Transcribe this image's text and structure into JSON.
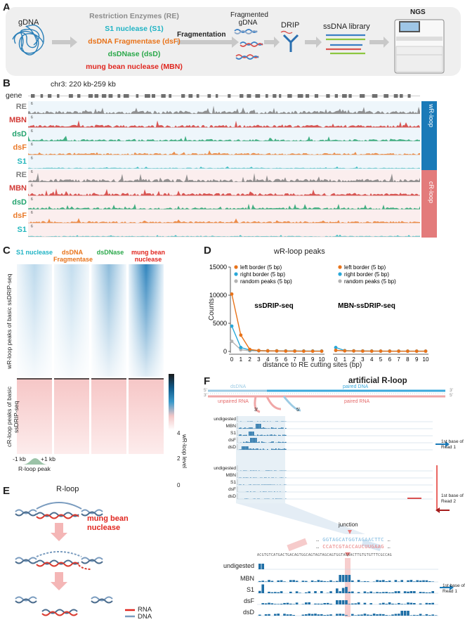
{
  "panels": {
    "A": {
      "letter": "A",
      "gdna": "gDNA",
      "enzymes": [
        {
          "label": "Restriction Enzymes (RE)",
          "color": "#8c8c8c"
        },
        {
          "label": "S1 nuclease (S1)",
          "color": "#1fb3c4"
        },
        {
          "label": "dsDNA Fragmentase (dsF)",
          "color": "#e8731a"
        },
        {
          "label": "dsDNase (dsD)",
          "color": "#2aa84a"
        },
        {
          "label": "mung bean nuclease (MBN)",
          "color": "#e0261f"
        }
      ],
      "fragmentation": "Fragmentation",
      "fragmented_gdna_line1": "Fragmented",
      "fragmented_gdna_line2": "gDNA",
      "drip": "DRIP",
      "ssdna_library": "ssDNA library",
      "ngs": "NGS"
    },
    "B": {
      "letter": "B",
      "region": "chr3: 220 kb-259 kb",
      "gene_label": "gene",
      "tracks_wr": [
        "RE",
        "MBN",
        "dsD",
        "dsF",
        "S1"
      ],
      "tracks_cr": [
        "RE",
        "MBN",
        "dsD",
        "dsF",
        "S1"
      ],
      "scale_label": "6",
      "wr_label": "wR-loop",
      "cr_label": "cR-loop"
    },
    "C": {
      "letter": "C",
      "columns": [
        {
          "line1": "S1 nuclease",
          "line2": "",
          "color": "#1fb3c4"
        },
        {
          "line1": "dsDNA",
          "line2": "Fragmentase",
          "color": "#e8731a"
        },
        {
          "line1": "dsDNase",
          "line2": "",
          "color": "#2aa84a"
        },
        {
          "line1": "mung bean",
          "line2": "nuclease",
          "color": "#e0261f"
        }
      ],
      "ylabel_top": "wR-loop peaks of basic ssDRIP-seq",
      "ylabel_bottom": "cR-loop peaks of basic ssDRIP-seq",
      "x_left": "-1 kb",
      "x_right": "+1 kb",
      "x_center": "R-loop peak",
      "colorbar_label": "wR-loop level",
      "colorbar_ticks": [
        "4",
        "2",
        "0"
      ]
    },
    "D": {
      "letter": "D",
      "title": "wR-loop peaks",
      "ylabel": "Counts",
      "xlabel": "distance to RE cutting sites (bp)",
      "legend": [
        {
          "label": "left border (5 bp)",
          "color": "#e8731a"
        },
        {
          "label": "right border (5 bp)",
          "color": "#29a8d8"
        },
        {
          "label": "random peaks (5 bp)",
          "color": "#b3b3b3"
        }
      ],
      "subplot_labels": [
        "ssDRIP-seq",
        "MBN-ssDRIP-seq"
      ],
      "yticks": [
        "0",
        "5000",
        "10000",
        "15000"
      ]
    },
    "E": {
      "letter": "E",
      "rloop": "R-loop",
      "mbn_line1": "mung bean",
      "mbn_line2": "nuclease",
      "legend_rna": "RNA",
      "legend_dna": "DNA"
    },
    "F": {
      "letter": "F",
      "title": "artificial R-loop",
      "dsdna": "dsDNA",
      "paired_dna": "paired DNA",
      "unpaired_rna": "unpaired RNA",
      "paired_rna": "paired RNA",
      "top_tracks": [
        "undigested",
        "MBN",
        "S1",
        "dsF",
        "dsD"
      ],
      "read1_line1": "1st base of",
      "read1_line2": "Read 1",
      "read2_line1": "1st base of",
      "read2_line2": "Read 2",
      "junction": "junction",
      "seq_top": "GGTAGCATGGTAGAACTTC",
      "seq_bottom": "CCATCGTACCAUCUUGAAG",
      "zoom_sequence": "ACGTGTCATGACTGACAGTGGCAGTAGTAGCAGTGGTAGAACTTGTGTGTTTCGCCAG",
      "zoom_tracks": [
        "undigested",
        "MBN",
        "S1",
        "dsF",
        "dsD"
      ],
      "zoom_read_line1": "1st base of",
      "zoom_read_line2": "Read 1"
    }
  },
  "chart_data": [
    {
      "type": "line",
      "title": "wR-loop peaks",
      "subtitle": "ssDRIP-seq",
      "xlabel": "distance to RE cutting sites (bp)",
      "ylabel": "Counts",
      "x": [
        0,
        1,
        2,
        3,
        4,
        5,
        6,
        7,
        8,
        9,
        10
      ],
      "ylim": [
        0,
        15000
      ],
      "series": [
        {
          "name": "left border (5 bp)",
          "color": "#e8731a",
          "values": [
            10200,
            2900,
            350,
            150,
            100,
            80,
            60,
            50,
            40,
            40,
            40
          ]
        },
        {
          "name": "right border (5 bp)",
          "color": "#29a8d8",
          "values": [
            4500,
            700,
            250,
            150,
            120,
            100,
            90,
            80,
            70,
            70,
            70
          ]
        },
        {
          "name": "random peaks (5 bp)",
          "color": "#b3b3b3",
          "values": [
            1800,
            300,
            100,
            80,
            60,
            50,
            50,
            40,
            40,
            40,
            40
          ]
        }
      ]
    },
    {
      "type": "line",
      "title": "wR-loop peaks",
      "subtitle": "MBN-ssDRIP-seq",
      "xlabel": "distance to RE cutting sites (bp)",
      "ylabel": "Counts",
      "x": [
        0,
        1,
        2,
        3,
        4,
        5,
        6,
        7,
        8,
        9,
        10
      ],
      "ylim": [
        0,
        15000
      ],
      "series": [
        {
          "name": "left border (5 bp)",
          "color": "#e8731a",
          "values": [
            200,
            100,
            80,
            60,
            50,
            50,
            40,
            40,
            40,
            40,
            40
          ]
        },
        {
          "name": "right border (5 bp)",
          "color": "#29a8d8",
          "values": [
            700,
            150,
            100,
            80,
            70,
            60,
            60,
            50,
            50,
            50,
            50
          ]
        },
        {
          "name": "random peaks (5 bp)",
          "color": "#b3b3b3",
          "values": [
            150,
            80,
            60,
            50,
            40,
            40,
            40,
            40,
            40,
            40,
            40
          ]
        }
      ]
    }
  ]
}
